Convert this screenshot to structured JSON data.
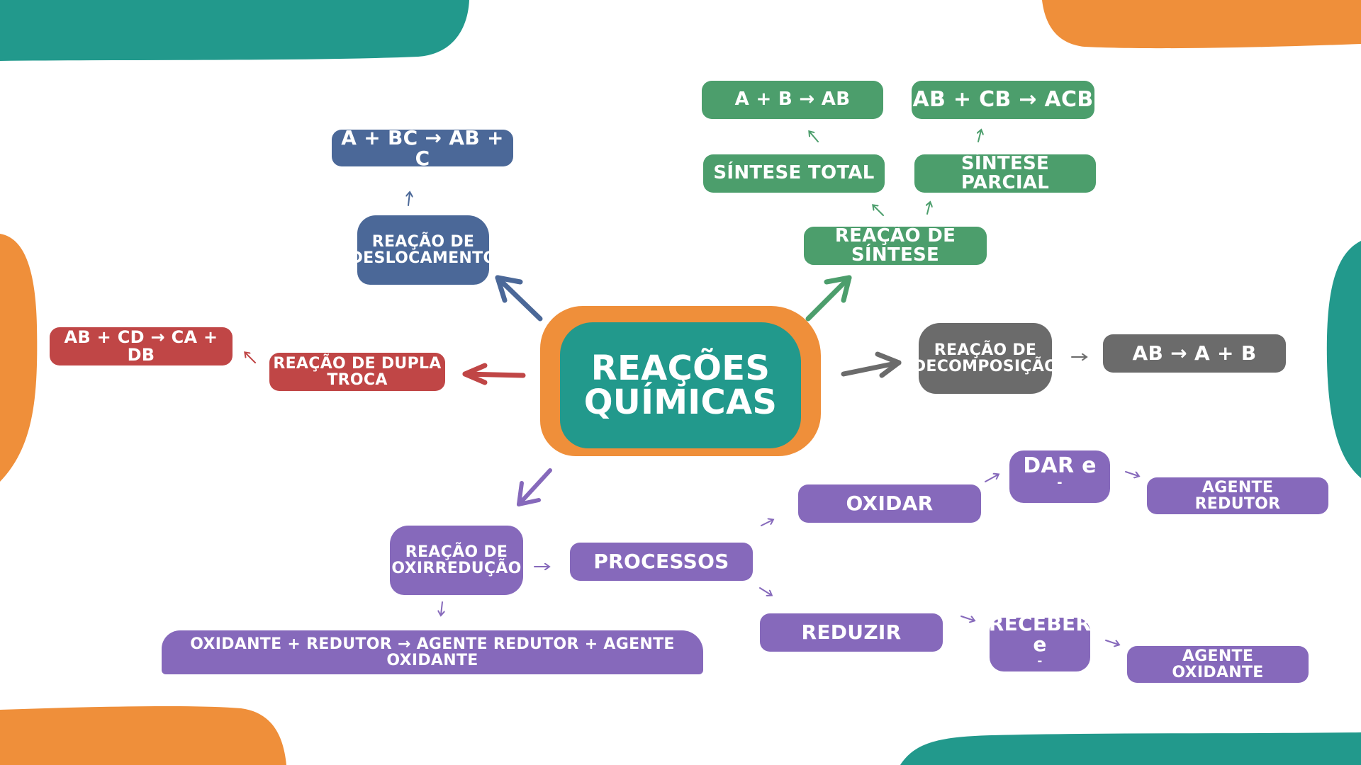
{
  "colors": {
    "teal": "#22998c",
    "orange": "#ef8f3a",
    "blue": "#4b6898",
    "green": "#4c9e6c",
    "red": "#c04646",
    "gray": "#6b6b6b",
    "purple": "#8669bb"
  },
  "center": {
    "line1": "REAÇÕES",
    "line2": "QUÍMICAS"
  },
  "deslocamento": {
    "label_line1": "REAÇÃO DE",
    "label_line2": "DESLOCAMENTO",
    "formula": "A + BC → AB + C"
  },
  "dupla_troca": {
    "label_line1": "REAÇÃO DE DUPLA",
    "label_line2": "TROCA",
    "formula": "AB + CD → CA + DB"
  },
  "sintese": {
    "label": "REAÇÃO DE SÍNTESE",
    "total": {
      "label": "SÍNTESE TOTAL",
      "formula": "A + B → AB"
    },
    "parcial": {
      "label": "SÍNTESE PARCIAL",
      "formula": "AB + CB → ACB"
    }
  },
  "decomposicao": {
    "label_line1": "REAÇÃO DE",
    "label_line2": "DECOMPOSIÇÃO",
    "formula": "AB → A + B"
  },
  "oxirreducao": {
    "label_line1": "REAÇÃO DE",
    "label_line2": "OXIRREDUÇÃO",
    "equation": "OXIDANTE + REDUTOR → AGENTE REDUTOR + AGENTE OXIDANTE",
    "processos": "PROCESSOS",
    "oxidar": {
      "label": "OXIDAR",
      "action": "DAR e",
      "action_sup": "-",
      "agent_line1": "AGENTE",
      "agent_line2": "REDUTOR"
    },
    "reduzir": {
      "label": "REDUZIR",
      "action_line1": "RECEBER",
      "action_line2": "e",
      "action_sup": "-",
      "agent_line1": "AGENTE",
      "agent_line2": "OXIDANTE"
    }
  }
}
